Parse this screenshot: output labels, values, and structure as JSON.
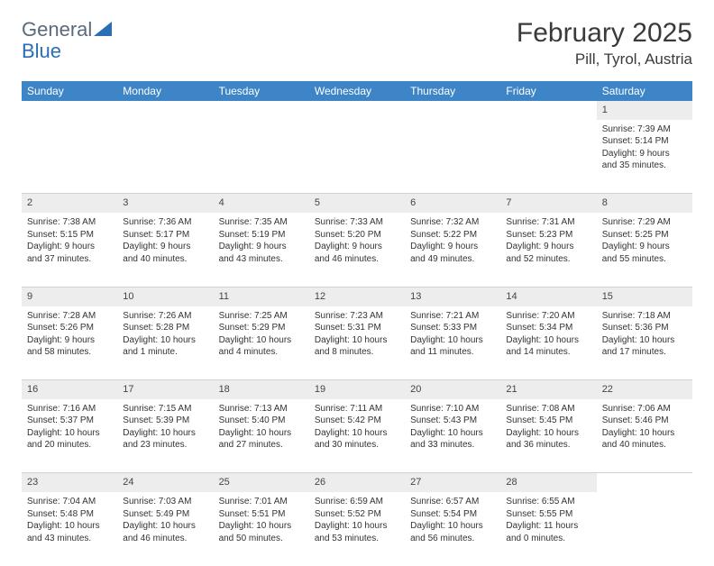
{
  "logo": {
    "text1": "General",
    "text2": "Blue"
  },
  "title": "February 2025",
  "location": "Pill, Tyrol, Austria",
  "header_bg": "#3d85c6",
  "header_fg": "#ffffff",
  "daterow_bg": "#ededed",
  "text_color": "#333333",
  "days": [
    "Sunday",
    "Monday",
    "Tuesday",
    "Wednesday",
    "Thursday",
    "Friday",
    "Saturday"
  ],
  "weeks": [
    {
      "dates": [
        "",
        "",
        "",
        "",
        "",
        "",
        "1"
      ],
      "cells": [
        null,
        null,
        null,
        null,
        null,
        null,
        {
          "sunrise": "Sunrise: 7:39 AM",
          "sunset": "Sunset: 5:14 PM",
          "daylight": "Daylight: 9 hours and 35 minutes."
        }
      ]
    },
    {
      "dates": [
        "2",
        "3",
        "4",
        "5",
        "6",
        "7",
        "8"
      ],
      "cells": [
        {
          "sunrise": "Sunrise: 7:38 AM",
          "sunset": "Sunset: 5:15 PM",
          "daylight": "Daylight: 9 hours and 37 minutes."
        },
        {
          "sunrise": "Sunrise: 7:36 AM",
          "sunset": "Sunset: 5:17 PM",
          "daylight": "Daylight: 9 hours and 40 minutes."
        },
        {
          "sunrise": "Sunrise: 7:35 AM",
          "sunset": "Sunset: 5:19 PM",
          "daylight": "Daylight: 9 hours and 43 minutes."
        },
        {
          "sunrise": "Sunrise: 7:33 AM",
          "sunset": "Sunset: 5:20 PM",
          "daylight": "Daylight: 9 hours and 46 minutes."
        },
        {
          "sunrise": "Sunrise: 7:32 AM",
          "sunset": "Sunset: 5:22 PM",
          "daylight": "Daylight: 9 hours and 49 minutes."
        },
        {
          "sunrise": "Sunrise: 7:31 AM",
          "sunset": "Sunset: 5:23 PM",
          "daylight": "Daylight: 9 hours and 52 minutes."
        },
        {
          "sunrise": "Sunrise: 7:29 AM",
          "sunset": "Sunset: 5:25 PM",
          "daylight": "Daylight: 9 hours and 55 minutes."
        }
      ]
    },
    {
      "dates": [
        "9",
        "10",
        "11",
        "12",
        "13",
        "14",
        "15"
      ],
      "cells": [
        {
          "sunrise": "Sunrise: 7:28 AM",
          "sunset": "Sunset: 5:26 PM",
          "daylight": "Daylight: 9 hours and 58 minutes."
        },
        {
          "sunrise": "Sunrise: 7:26 AM",
          "sunset": "Sunset: 5:28 PM",
          "daylight": "Daylight: 10 hours and 1 minute."
        },
        {
          "sunrise": "Sunrise: 7:25 AM",
          "sunset": "Sunset: 5:29 PM",
          "daylight": "Daylight: 10 hours and 4 minutes."
        },
        {
          "sunrise": "Sunrise: 7:23 AM",
          "sunset": "Sunset: 5:31 PM",
          "daylight": "Daylight: 10 hours and 8 minutes."
        },
        {
          "sunrise": "Sunrise: 7:21 AM",
          "sunset": "Sunset: 5:33 PM",
          "daylight": "Daylight: 10 hours and 11 minutes."
        },
        {
          "sunrise": "Sunrise: 7:20 AM",
          "sunset": "Sunset: 5:34 PM",
          "daylight": "Daylight: 10 hours and 14 minutes."
        },
        {
          "sunrise": "Sunrise: 7:18 AM",
          "sunset": "Sunset: 5:36 PM",
          "daylight": "Daylight: 10 hours and 17 minutes."
        }
      ]
    },
    {
      "dates": [
        "16",
        "17",
        "18",
        "19",
        "20",
        "21",
        "22"
      ],
      "cells": [
        {
          "sunrise": "Sunrise: 7:16 AM",
          "sunset": "Sunset: 5:37 PM",
          "daylight": "Daylight: 10 hours and 20 minutes."
        },
        {
          "sunrise": "Sunrise: 7:15 AM",
          "sunset": "Sunset: 5:39 PM",
          "daylight": "Daylight: 10 hours and 23 minutes."
        },
        {
          "sunrise": "Sunrise: 7:13 AM",
          "sunset": "Sunset: 5:40 PM",
          "daylight": "Daylight: 10 hours and 27 minutes."
        },
        {
          "sunrise": "Sunrise: 7:11 AM",
          "sunset": "Sunset: 5:42 PM",
          "daylight": "Daylight: 10 hours and 30 minutes."
        },
        {
          "sunrise": "Sunrise: 7:10 AM",
          "sunset": "Sunset: 5:43 PM",
          "daylight": "Daylight: 10 hours and 33 minutes."
        },
        {
          "sunrise": "Sunrise: 7:08 AM",
          "sunset": "Sunset: 5:45 PM",
          "daylight": "Daylight: 10 hours and 36 minutes."
        },
        {
          "sunrise": "Sunrise: 7:06 AM",
          "sunset": "Sunset: 5:46 PM",
          "daylight": "Daylight: 10 hours and 40 minutes."
        }
      ]
    },
    {
      "dates": [
        "23",
        "24",
        "25",
        "26",
        "27",
        "28",
        ""
      ],
      "cells": [
        {
          "sunrise": "Sunrise: 7:04 AM",
          "sunset": "Sunset: 5:48 PM",
          "daylight": "Daylight: 10 hours and 43 minutes."
        },
        {
          "sunrise": "Sunrise: 7:03 AM",
          "sunset": "Sunset: 5:49 PM",
          "daylight": "Daylight: 10 hours and 46 minutes."
        },
        {
          "sunrise": "Sunrise: 7:01 AM",
          "sunset": "Sunset: 5:51 PM",
          "daylight": "Daylight: 10 hours and 50 minutes."
        },
        {
          "sunrise": "Sunrise: 6:59 AM",
          "sunset": "Sunset: 5:52 PM",
          "daylight": "Daylight: 10 hours and 53 minutes."
        },
        {
          "sunrise": "Sunrise: 6:57 AM",
          "sunset": "Sunset: 5:54 PM",
          "daylight": "Daylight: 10 hours and 56 minutes."
        },
        {
          "sunrise": "Sunrise: 6:55 AM",
          "sunset": "Sunset: 5:55 PM",
          "daylight": "Daylight: 11 hours and 0 minutes."
        },
        null
      ]
    }
  ]
}
